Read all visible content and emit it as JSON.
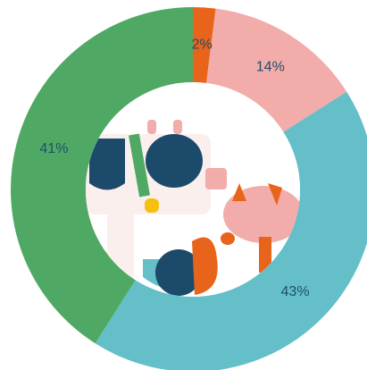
{
  "chart_data": {
    "type": "donut",
    "categories": [
      null,
      null,
      null,
      null
    ],
    "values": [
      2,
      14,
      43,
      41
    ],
    "value_labels": [
      "2%",
      "14%",
      "43%",
      "41%"
    ],
    "colors": [
      "#e8641b",
      "#f2aca9",
      "#64bfc9",
      "#4fa964"
    ]
  }
}
